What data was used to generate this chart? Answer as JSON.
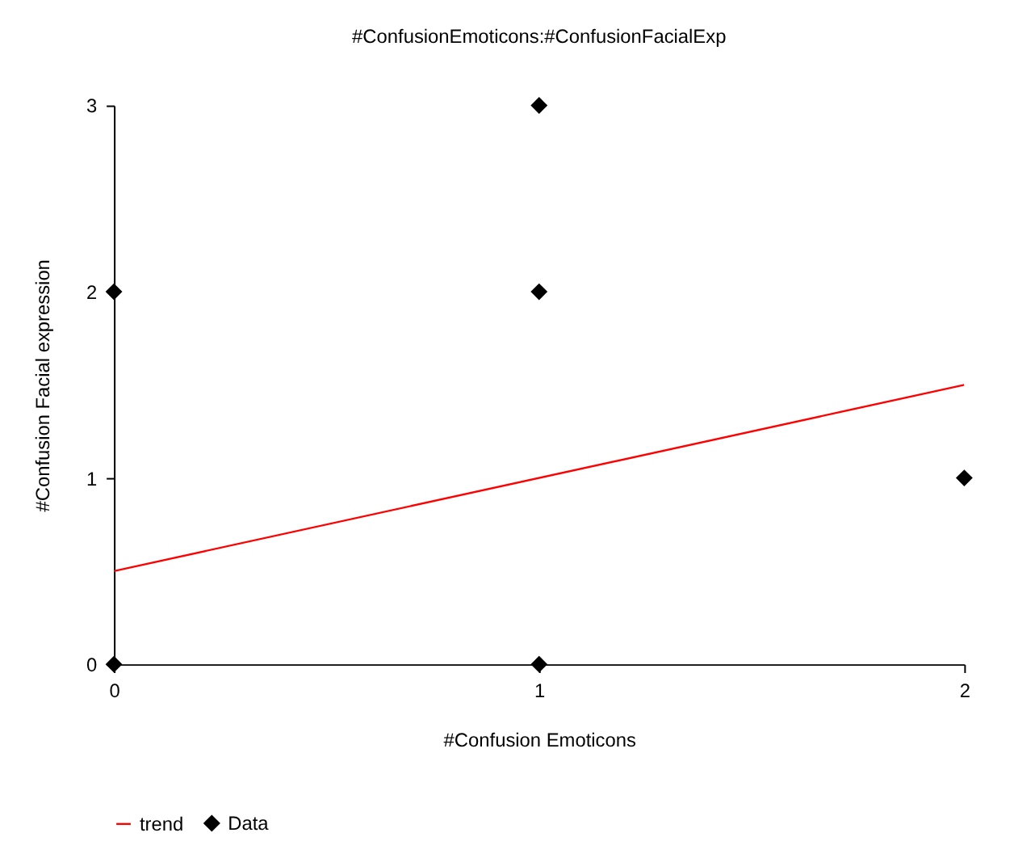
{
  "chart_data": {
    "type": "scatter",
    "title": "#ConfusionEmoticons:#ConfusionFacialExp",
    "xlabel": "#Confusion Emoticons",
    "ylabel": "#Confusion Facial expression",
    "xlim": [
      0,
      2
    ],
    "ylim": [
      0,
      3
    ],
    "xticks": [
      0,
      1,
      2
    ],
    "yticks": [
      0,
      1,
      2,
      3
    ],
    "grid": false,
    "legend": "bottom",
    "series": [
      {
        "name": "trend",
        "type": "line",
        "color": "#ff0000",
        "x": [
          0,
          2
        ],
        "values": [
          0.5,
          1.5
        ],
        "line_style": "solid",
        "marker": "none"
      },
      {
        "name": "Data",
        "type": "scatter",
        "color": "#000000",
        "marker": "diamond",
        "x": [
          0,
          0,
          1,
          1,
          1,
          2
        ],
        "values": [
          0,
          2,
          3,
          2,
          0,
          1
        ]
      }
    ]
  }
}
